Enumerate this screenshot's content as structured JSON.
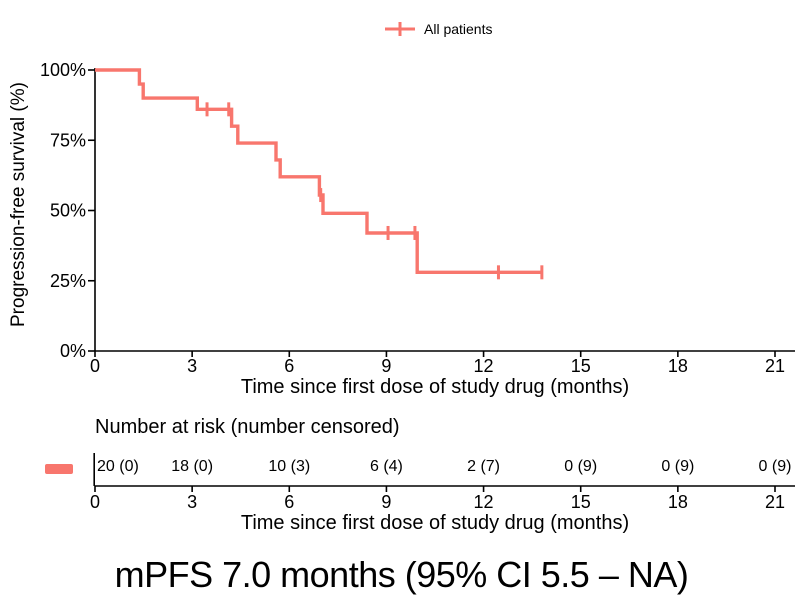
{
  "legend": {
    "label": "All patients"
  },
  "caption": "mPFS 7.0 months (95% CI 5.5 – NA)",
  "risk_table": {
    "title": "Number at risk (number censored)",
    "times": [
      0,
      3,
      6,
      9,
      12,
      15,
      18,
      21
    ],
    "values": [
      "20 (0)",
      "18 (0)",
      "10 (3)",
      "6 (4)",
      "2 (7)",
      "0 (9)",
      "0 (9)",
      "0 (9)"
    ]
  },
  "chart_data": {
    "type": "line",
    "subtype": "kaplan-meier-step",
    "title": "",
    "xlabel": "Time since first dose of study drug (months)",
    "ylabel": "Progression-free survival (%)",
    "xlim": [
      0,
      21
    ],
    "ylim": [
      0,
      100
    ],
    "x_ticks": [
      0,
      3,
      6,
      9,
      12,
      15,
      18,
      21
    ],
    "y_ticks": [
      {
        "v": 0,
        "label": "0%"
      },
      {
        "v": 25,
        "label": "25%"
      },
      {
        "v": 50,
        "label": "50%"
      },
      {
        "v": 75,
        "label": "75%"
      },
      {
        "v": 100,
        "label": "100%"
      }
    ],
    "grid": false,
    "legend_position": "top",
    "series": [
      {
        "name": "All patients",
        "color": "#F8766D",
        "steps": [
          [
            0,
            100
          ],
          [
            1.37,
            100
          ],
          [
            1.37,
            95
          ],
          [
            1.49,
            95
          ],
          [
            1.49,
            90
          ],
          [
            3.16,
            90
          ],
          [
            3.16,
            86
          ],
          [
            4.22,
            86
          ],
          [
            4.22,
            80
          ],
          [
            4.41,
            80
          ],
          [
            4.41,
            74
          ],
          [
            5.59,
            74
          ],
          [
            5.59,
            68
          ],
          [
            5.72,
            68
          ],
          [
            5.72,
            62
          ],
          [
            6.93,
            62
          ],
          [
            6.93,
            55.5
          ],
          [
            7.04,
            55.5
          ],
          [
            7.04,
            49
          ],
          [
            8.4,
            49
          ],
          [
            8.4,
            42
          ],
          [
            9.95,
            42
          ],
          [
            9.95,
            28
          ],
          [
            13.8,
            28
          ]
        ],
        "censor_marks": [
          [
            3.46,
            86
          ],
          [
            4.13,
            86
          ],
          [
            6.97,
            55.5
          ],
          [
            9.05,
            42
          ],
          [
            9.88,
            42
          ],
          [
            12.46,
            28
          ],
          [
            13.8,
            28
          ]
        ]
      }
    ],
    "colors": {
      "stratum": "#F8766D",
      "axis": "#000000"
    }
  }
}
